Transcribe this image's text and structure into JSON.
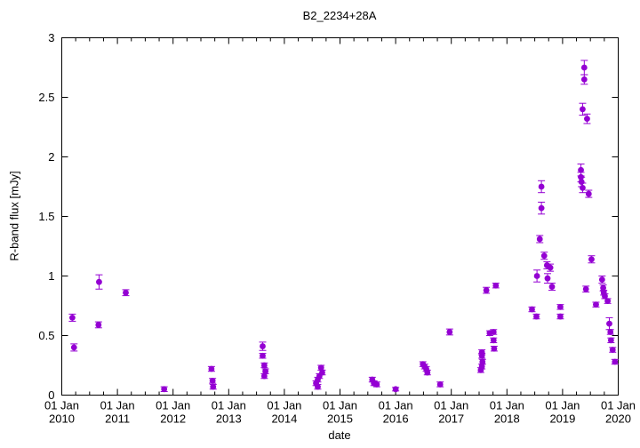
{
  "chart_data": {
    "type": "scatter",
    "title": "B2_2234+28A",
    "xlabel": "date",
    "ylabel": "R-band flux [mJy]",
    "grid": false,
    "legend": null,
    "marker": {
      "shape": "filled-circle",
      "color": "#9400d3",
      "error_bars": true
    },
    "x_axis": {
      "unit": "decimal_year",
      "range": [
        2010,
        2020
      ],
      "minor_tick_interval_years": 0.25,
      "major_ticks": [
        {
          "value": 2010,
          "line1": "01 Jan",
          "line2": "2010"
        },
        {
          "value": 2011,
          "line1": "01 Jan",
          "line2": "2011"
        },
        {
          "value": 2012,
          "line1": "01 Jan",
          "line2": "2012"
        },
        {
          "value": 2013,
          "line1": "01 Jan",
          "line2": "2013"
        },
        {
          "value": 2014,
          "line1": "01 Jan",
          "line2": "2014"
        },
        {
          "value": 2015,
          "line1": "01 Jan",
          "line2": "2015"
        },
        {
          "value": 2016,
          "line1": "01 Jan",
          "line2": "2016"
        },
        {
          "value": 2017,
          "line1": "01 Jan",
          "line2": "2017"
        },
        {
          "value": 2018,
          "line1": "01 Jan",
          "line2": "2018"
        },
        {
          "value": 2019,
          "line1": "01 Jan",
          "line2": "2019"
        },
        {
          "value": 2020,
          "line1": "01 Jan",
          "line2": "2020"
        }
      ]
    },
    "y_axis": {
      "range": [
        0,
        3
      ],
      "tick_values": [
        0,
        0.5,
        1,
        1.5,
        2,
        2.5,
        3
      ],
      "tick_labels": [
        "0",
        "0.5",
        "1",
        "1.5",
        "2",
        "2.5",
        "3"
      ]
    },
    "series": [
      {
        "name": "R-band flux [mJy]",
        "points_format": [
          "x_decimal_year",
          "flux_mJy",
          "error_mJy"
        ],
        "points": [
          [
            2010.19,
            0.65,
            0.03
          ],
          [
            2010.22,
            0.4,
            0.03
          ],
          [
            2010.66,
            0.59,
            0.025
          ],
          [
            2010.67,
            0.95,
            0.06
          ],
          [
            2011.15,
            0.86,
            0.025
          ],
          [
            2011.84,
            0.05,
            0.02
          ],
          [
            2012.69,
            0.22,
            0.02
          ],
          [
            2012.71,
            0.12,
            0.02
          ],
          [
            2012.72,
            0.07,
            0.02
          ],
          [
            2013.61,
            0.41,
            0.035
          ],
          [
            2013.61,
            0.33,
            0.02
          ],
          [
            2013.64,
            0.25,
            0.02
          ],
          [
            2013.66,
            0.2,
            0.02
          ],
          [
            2013.64,
            0.16,
            0.02
          ],
          [
            2014.57,
            0.1,
            0.02
          ],
          [
            2014.6,
            0.13,
            0.02
          ],
          [
            2014.6,
            0.07,
            0.02
          ],
          [
            2014.63,
            0.16,
            0.02
          ],
          [
            2014.66,
            0.23,
            0.02
          ],
          [
            2014.68,
            0.19,
            0.02
          ],
          [
            2015.58,
            0.13,
            0.02
          ],
          [
            2015.61,
            0.1,
            0.02
          ],
          [
            2015.66,
            0.09,
            0.02
          ],
          [
            2016.0,
            0.05,
            0.015
          ],
          [
            2016.49,
            0.26,
            0.02
          ],
          [
            2016.52,
            0.24,
            0.02
          ],
          [
            2016.55,
            0.22,
            0.02
          ],
          [
            2016.57,
            0.19,
            0.02
          ],
          [
            2016.8,
            0.09,
            0.02
          ],
          [
            2016.97,
            0.53,
            0.025
          ],
          [
            2017.53,
            0.21,
            0.02
          ],
          [
            2017.55,
            0.24,
            0.02
          ],
          [
            2017.55,
            0.33,
            0.02
          ],
          [
            2017.55,
            0.36,
            0.02
          ],
          [
            2017.56,
            0.28,
            0.02
          ],
          [
            2017.63,
            0.88,
            0.025
          ],
          [
            2017.69,
            0.52,
            0.02
          ],
          [
            2017.76,
            0.53,
            0.02
          ],
          [
            2017.76,
            0.46,
            0.02
          ],
          [
            2017.77,
            0.39,
            0.02
          ],
          [
            2017.8,
            0.92,
            0.02
          ],
          [
            2018.45,
            0.72,
            0.02
          ],
          [
            2018.53,
            0.66,
            0.02
          ],
          [
            2018.54,
            1.0,
            0.05
          ],
          [
            2018.59,
            1.31,
            0.03
          ],
          [
            2018.62,
            1.57,
            0.05
          ],
          [
            2018.62,
            1.75,
            0.05
          ],
          [
            2018.67,
            1.17,
            0.03
          ],
          [
            2018.72,
            1.09,
            0.03
          ],
          [
            2018.73,
            0.98,
            0.04
          ],
          [
            2018.78,
            1.07,
            0.03
          ],
          [
            2018.81,
            0.91,
            0.03
          ],
          [
            2018.96,
            0.74,
            0.02
          ],
          [
            2018.96,
            0.66,
            0.02
          ],
          [
            2019.33,
            1.89,
            0.05
          ],
          [
            2019.33,
            1.83,
            0.04
          ],
          [
            2019.34,
            1.79,
            0.04
          ],
          [
            2019.36,
            1.74,
            0.04
          ],
          [
            2019.36,
            2.4,
            0.05
          ],
          [
            2019.39,
            2.75,
            0.06
          ],
          [
            2019.39,
            2.65,
            0.04
          ],
          [
            2019.42,
            0.89,
            0.025
          ],
          [
            2019.44,
            2.32,
            0.04
          ],
          [
            2019.47,
            1.69,
            0.03
          ],
          [
            2019.52,
            1.14,
            0.03
          ],
          [
            2019.6,
            0.76,
            0.02
          ],
          [
            2019.71,
            0.97,
            0.03
          ],
          [
            2019.73,
            0.9,
            0.025
          ],
          [
            2019.74,
            0.86,
            0.02
          ],
          [
            2019.76,
            0.83,
            0.02
          ],
          [
            2019.81,
            0.79,
            0.02
          ],
          [
            2019.84,
            0.6,
            0.05
          ],
          [
            2019.86,
            0.53,
            0.02
          ],
          [
            2019.87,
            0.46,
            0.02
          ],
          [
            2019.9,
            0.38,
            0.02
          ],
          [
            2019.94,
            0.28,
            0.02
          ]
        ]
      }
    ],
    "layout": {
      "plot_left": 69,
      "plot_right": 695,
      "plot_top": 42,
      "plot_bottom": 444,
      "frame_color": "#000000",
      "background": "#ffffff"
    }
  }
}
